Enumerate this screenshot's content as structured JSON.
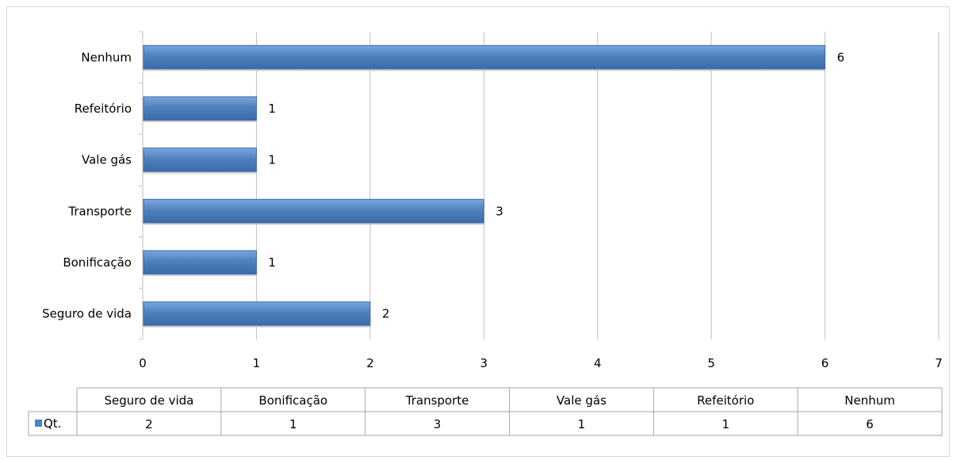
{
  "chart_data": {
    "type": "bar",
    "orientation": "horizontal",
    "categories": [
      "Seguro de vida",
      "Bonificação",
      "Transporte",
      "Vale gás",
      "Refeitório",
      "Nenhum"
    ],
    "series": [
      {
        "name": "Qt.",
        "values": [
          2,
          1,
          3,
          1,
          1,
          6
        ],
        "color": "#4f81bd"
      }
    ],
    "xlim": [
      0,
      7
    ],
    "xticks": [
      0,
      1,
      2,
      3,
      4,
      5,
      6,
      7
    ],
    "grid": true,
    "data_labels": true,
    "data_table": true
  },
  "colors": {
    "bar": "#4f81bd",
    "bar_highlight": "#7aa6e0",
    "bar_dark": "#3a6aa8",
    "grid": "#bfbfbf",
    "table_border": "#a6a6a6"
  }
}
